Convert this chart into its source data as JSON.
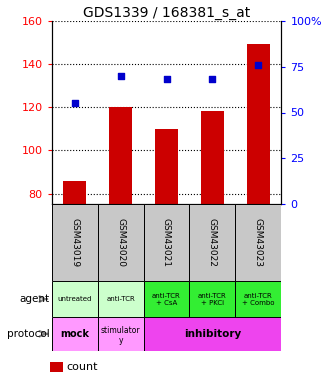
{
  "title": "GDS1339 / 168381_s_at",
  "samples": [
    "GSM43019",
    "GSM43020",
    "GSM43021",
    "GSM43022",
    "GSM43023"
  ],
  "bar_values": [
    86,
    120,
    110,
    118,
    149
  ],
  "scatter_pct": [
    55,
    70,
    68,
    68,
    76
  ],
  "ylim_left": [
    75,
    160
  ],
  "ylim_right": [
    0,
    100
  ],
  "yticks_left": [
    80,
    100,
    120,
    140,
    160
  ],
  "yticks_right": [
    0,
    25,
    50,
    75,
    100
  ],
  "ytick_labels_right": [
    "0",
    "25",
    "50",
    "75",
    "100%"
  ],
  "bar_color": "#cc0000",
  "scatter_color": "#0000cc",
  "agent_labels": [
    "untreated",
    "anti-TCR",
    "anti-TCR\n+ CsA",
    "anti-TCR\n+ PKCi",
    "anti-TCR\n+ Combo"
  ],
  "agent_colors": [
    "#ccffcc",
    "#ccffcc",
    "#33ee33",
    "#33ee33",
    "#33ee33"
  ],
  "sample_bg_color": "#c8c8c8",
  "proto_mock_color": "#ff99ff",
  "proto_stim_color": "#ff99ff",
  "proto_inhib_color": "#ee44ee",
  "legend_count_color": "#cc0000",
  "legend_pct_color": "#0000cc"
}
